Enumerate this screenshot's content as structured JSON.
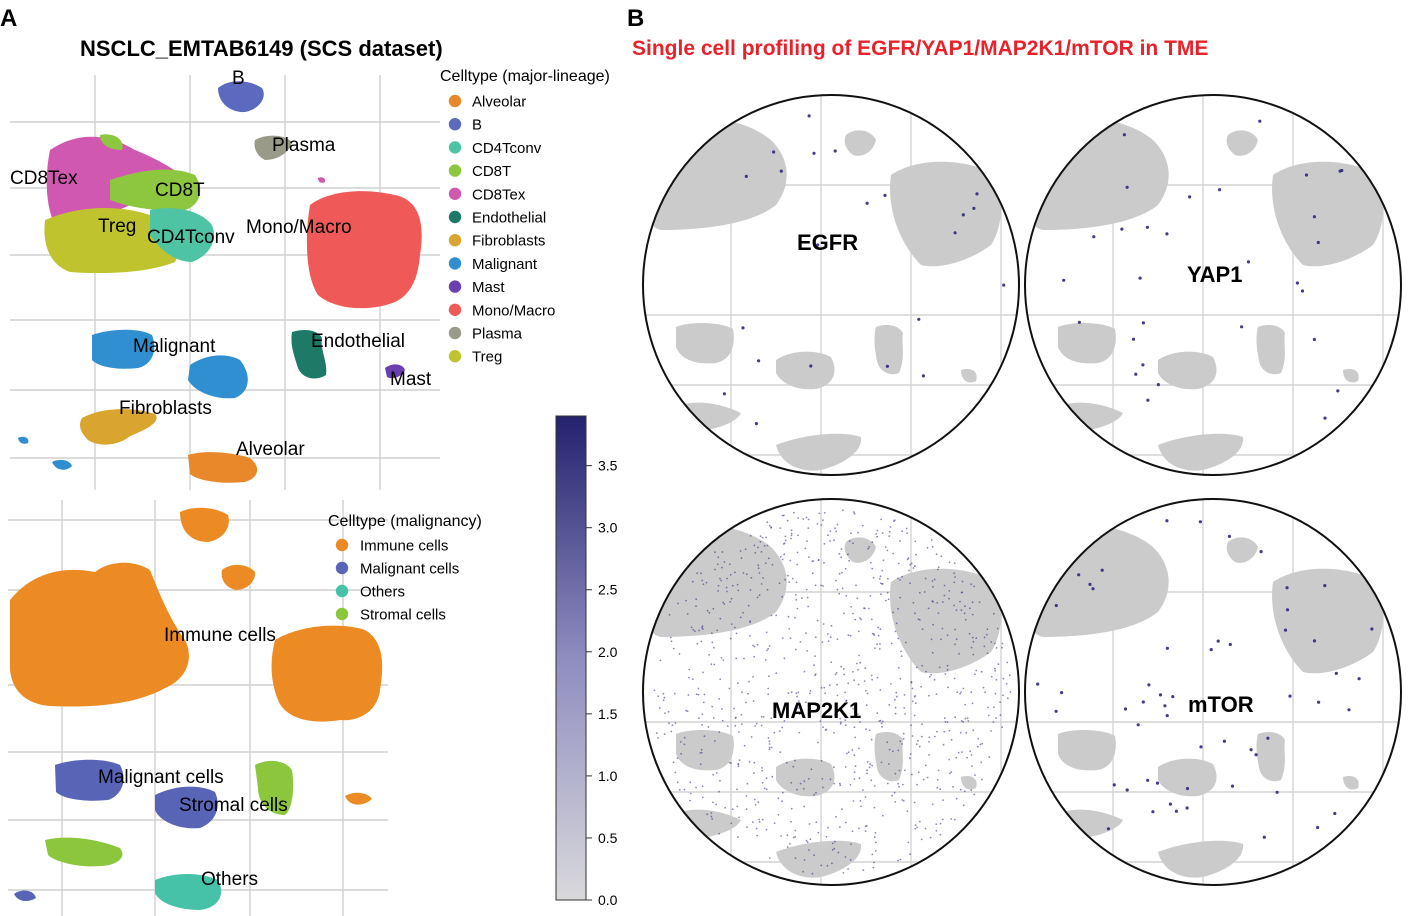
{
  "panels": {
    "a": {
      "letter": "A",
      "title": "NSCLC_EMTAB6149 (SCS dataset)"
    },
    "b": {
      "letter": "B",
      "title": "Single cell profiling of EGFR/YAP1/MAP2K1/mTOR in TME"
    }
  },
  "colors": {
    "Alveolar": "#e8882a",
    "B": "#5b6abf",
    "CD4Tconv": "#4fc4a4",
    "CD8T": "#8dc63f",
    "CD8Tex": "#d158b0",
    "Endothelial": "#1e7a66",
    "Fibroblasts": "#d9a52e",
    "Malignant": "#2f8fd0",
    "Mast": "#6c3fb0",
    "Mono/Macro": "#ef5a58",
    "Plasma": "#9a9a88",
    "Treg": "#bfc42e",
    "Immune cells": "#ec8b23",
    "Malignant cells": "#5865b7",
    "Others": "#45c2a8",
    "Stromal cells": "#8cc63c",
    "gray": "#c9c9c9",
    "titleRed": "#e8222a",
    "expr": "#2b2a7a"
  },
  "chart_data": [
    {
      "type": "scatter",
      "title": "NSCLC_EMTAB6149 (SCS dataset)",
      "legend_title": "Celltype (major-lineage)",
      "legend": [
        "Alveolar",
        "B",
        "CD4Tconv",
        "CD8T",
        "CD8Tex",
        "Endothelial",
        "Fibroblasts",
        "Malignant",
        "Mast",
        "Mono/Macro",
        "Plasma",
        "Treg"
      ],
      "cluster_labels": [
        "B",
        "Plasma",
        "CD8Tex",
        "CD8T",
        "Treg",
        "CD4Tconv",
        "Mono/Macro",
        "Malignant",
        "Endothelial",
        "Mast",
        "Fibroblasts",
        "Alveolar"
      ]
    },
    {
      "type": "scatter",
      "legend_title": "Celltype (malignancy)",
      "legend": [
        "Immune cells",
        "Malignant cells",
        "Others",
        "Stromal cells"
      ],
      "cluster_labels": [
        "Immune cells",
        "Malignant cells",
        "Stromal cells",
        "Others"
      ]
    },
    {
      "type": "scatter",
      "title": "Single cell profiling of EGFR/YAP1/MAP2K1/mTOR in TME",
      "genes": [
        "EGFR",
        "YAP1",
        "MAP2K1",
        "mTOR"
      ],
      "colorbar": {
        "min": 0.0,
        "max": 3.9,
        "ticks": [
          "0.0",
          "0.5",
          "1.0",
          "1.5",
          "2.0",
          "2.5",
          "3.0",
          "3.5"
        ]
      }
    }
  ]
}
